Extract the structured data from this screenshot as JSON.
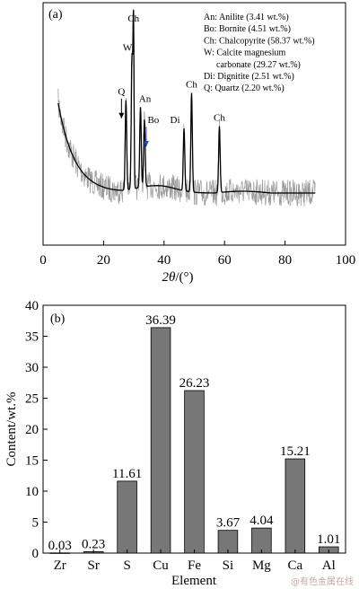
{
  "chart_data": [
    {
      "panel_label": "(a)",
      "type": "line",
      "xlabel_italic": "2θ",
      "xlabel_unit": "/(°)",
      "ylabel": "",
      "xlim": [
        0,
        100
      ],
      "x_ticks": [
        "0",
        "20",
        "40",
        "60",
        "80",
        "100"
      ],
      "x_tick_values": [
        0,
        20,
        40,
        60,
        80,
        100
      ],
      "legend": [
        "An: Anilite (3.41 wt.%)",
        "Bo: Bornite (4.51 wt.%)",
        "Ch: Chalcopyrite (58.37 wt.%)",
        "W: Calcite magnesium",
        "carbonate (29.27 wt.%)",
        "Di: Dignitite (2.51 wt.%)",
        "Q: Quartz (2.20 wt.%)"
      ],
      "peaks": [
        {
          "label": "Q",
          "x": 27.4,
          "intensity": 0.55,
          "arrow": "black"
        },
        {
          "label": "W",
          "x": 29.4,
          "intensity": 0.82
        },
        {
          "label": "Ch",
          "x": 29.9,
          "intensity": 1.0
        },
        {
          "label": "An",
          "x": 32.2,
          "intensity": 0.5
        },
        {
          "label": "Bo",
          "x": 33.5,
          "intensity": 0.42,
          "arrow": "blue"
        },
        {
          "label": "Di",
          "x": 46.6,
          "intensity": 0.38
        },
        {
          "label": "Ch",
          "x": 49.1,
          "intensity": 0.6
        },
        {
          "label": "Ch",
          "x": 58.3,
          "intensity": 0.4
        }
      ],
      "grid": false
    },
    {
      "panel_label": "(b)",
      "type": "bar",
      "categories": [
        "Zr",
        "Sr",
        "S",
        "Cu",
        "Fe",
        "Si",
        "Mg",
        "Ca",
        "Al"
      ],
      "values": [
        0.03,
        0.23,
        11.61,
        36.39,
        26.23,
        3.67,
        4.04,
        15.21,
        1.01
      ],
      "value_labels": [
        "0.03",
        "0.23",
        "11.61",
        "36.39",
        "26.23",
        "3.67",
        "4.04",
        "15.21",
        "1.01"
      ],
      "xlabel": "Element",
      "ylabel": "Content/wt.%",
      "ylim": [
        0,
        40
      ],
      "y_ticks": [
        "0",
        "5",
        "10",
        "15",
        "20",
        "25",
        "30",
        "35",
        "40"
      ],
      "y_tick_values": [
        0,
        5,
        10,
        15,
        20,
        25,
        30,
        35,
        40
      ],
      "bar_color": "#777777",
      "grid": false
    }
  ],
  "watermark": "@有色金属在线",
  "colors": {
    "noisy_trace": "#9a9a9a",
    "fit_line": "#000000",
    "arrow_bo": "#1f3fd6",
    "bar": "#777777"
  }
}
